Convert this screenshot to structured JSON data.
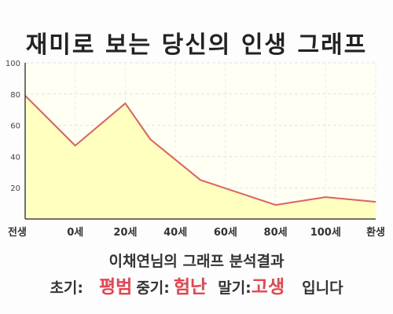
{
  "title": "재미로 보는 당신의 인생 그래프",
  "subtitle": "이채연님의 그래프 분석결과",
  "result": {
    "early_label": "초기:",
    "early_value": "평범",
    "mid_label": "중기:",
    "mid_value": "험난",
    "late_label": "말기:",
    "late_value": "고생",
    "ending": "입니다"
  },
  "colors": {
    "line": "#e06060",
    "fill": "#ffffc0",
    "plot_background": "#fffff4",
    "highlight_text": "#e8434f"
  },
  "chart_data": {
    "type": "area",
    "title": "",
    "xlabel": "",
    "ylabel": "",
    "x_categories": [
      "전생",
      "0세",
      "20세",
      "40세",
      "60세",
      "80세",
      "100세",
      "환생"
    ],
    "y_ticks": [
      20,
      40,
      60,
      80,
      100
    ],
    "ylim": [
      0,
      100
    ],
    "grid": true,
    "series": [
      {
        "x": [
          0,
          1,
          2,
          2.5,
          3.5,
          5,
          6,
          7
        ],
        "y": [
          79,
          47,
          74,
          51,
          25,
          9,
          14,
          11
        ]
      }
    ]
  }
}
